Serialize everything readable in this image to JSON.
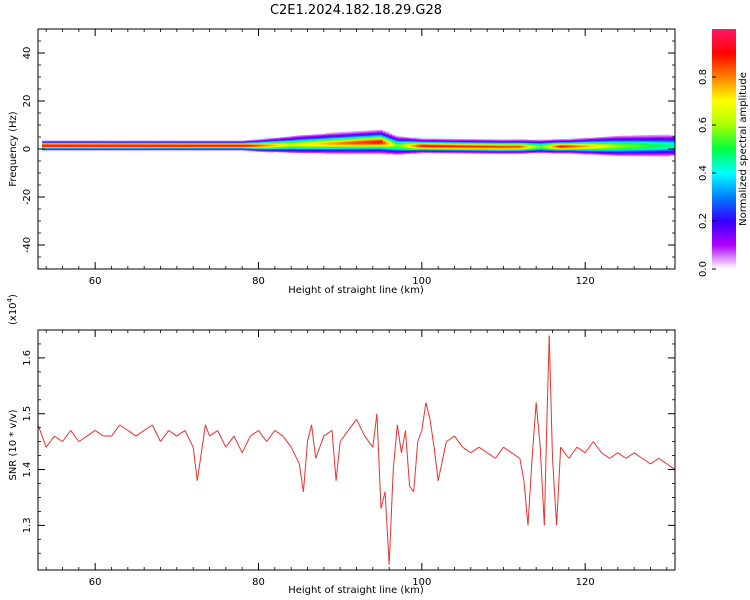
{
  "title": "C2E1.2024.182.18.29.G28",
  "colors": {
    "snr_line": "#e8312f",
    "axis": "#000000",
    "background": "#ffffff"
  },
  "chart_data": [
    {
      "type": "heatmap",
      "title": "",
      "xlabel": "Height of straight line (km)",
      "ylabel": "Frequency (Hz)",
      "xlim": [
        53,
        131
      ],
      "ylim": [
        -50,
        50
      ],
      "x_ticks": [
        60,
        80,
        100,
        120
      ],
      "y_ticks": [
        -40,
        -20,
        0,
        20,
        40
      ],
      "x_tick_labels": [
        "60",
        "80",
        "100",
        "120"
      ],
      "y_tick_labels": [
        "-40",
        "-20",
        "0",
        "20",
        "40"
      ],
      "colorbar": {
        "label": "Normalized spectral amplitude",
        "range": [
          0,
          1
        ],
        "ticks": [
          0.0,
          0.2,
          0.4,
          0.6,
          0.8
        ],
        "tick_labels": [
          "0.0",
          "0.2",
          "0.4",
          "0.6",
          "0.8"
        ],
        "colormap": [
          "#ffffff",
          "#b000ff",
          "#3300ff",
          "#0080ff",
          "#00ffff",
          "#00ff40",
          "#aaff00",
          "#ffff00",
          "#ff8000",
          "#ff0000",
          "#ff1a66"
        ]
      },
      "band": {
        "center_hz": [
          {
            "x": 53.5,
            "f": 1.5
          },
          {
            "x": 80,
            "f": 1.5
          },
          {
            "x": 90,
            "f": 2.5
          },
          {
            "x": 95,
            "f": 3.0
          },
          {
            "x": 97,
            "f": 1.5
          },
          {
            "x": 110,
            "f": 1.0
          },
          {
            "x": 131,
            "f": 1.5
          }
        ],
        "halfwidth_hz": [
          {
            "x": 53.5,
            "w": 2.0
          },
          {
            "x": 78,
            "w": 2.0
          },
          {
            "x": 85,
            "w": 4.0
          },
          {
            "x": 95,
            "w": 5.0
          },
          {
            "x": 100,
            "w": 3.0
          },
          {
            "x": 118,
            "w": 3.0
          },
          {
            "x": 124,
            "w": 4.5
          },
          {
            "x": 131,
            "w": 5.0
          }
        ],
        "peak_amplitude": [
          {
            "x": 53.5,
            "a": 1.0
          },
          {
            "x": 78,
            "a": 0.95
          },
          {
            "x": 84,
            "a": 0.65
          },
          {
            "x": 92,
            "a": 0.85
          },
          {
            "x": 95,
            "a": 0.9
          },
          {
            "x": 97,
            "a": 0.55
          },
          {
            "x": 100,
            "a": 0.9
          },
          {
            "x": 112,
            "a": 0.85
          },
          {
            "x": 114.5,
            "a": 0.55
          },
          {
            "x": 117,
            "a": 0.9
          },
          {
            "x": 124,
            "a": 0.6
          },
          {
            "x": 131,
            "a": 0.45
          }
        ]
      }
    },
    {
      "type": "line",
      "title": "",
      "xlabel": "Height of straight line (km)",
      "ylabel": "SNR (10 * v/v)",
      "y_multiplier": "(x10",
      "y_multiplier_exp": "4",
      "y_multiplier_close": ")",
      "xlim": [
        53,
        131
      ],
      "ylim": [
        1.22,
        1.65
      ],
      "x_ticks": [
        60,
        80,
        100,
        120
      ],
      "y_ticks": [
        1.3,
        1.4,
        1.5,
        1.6
      ],
      "x_tick_labels": [
        "60",
        "80",
        "100",
        "120"
      ],
      "y_tick_labels": [
        "1.3",
        "1.4",
        "1.5",
        "1.6"
      ],
      "series": [
        {
          "x": [
            53.0,
            54.0,
            55.0,
            56.0,
            57.0,
            58.0,
            59.0,
            60.0,
            61.0,
            62.0,
            63.0,
            64.0,
            65.0,
            66.0,
            67.0,
            68.0,
            69.0,
            70.0,
            71.0,
            72.0,
            72.5,
            73.0,
            73.5,
            74.0,
            75.0,
            76.0,
            77.0,
            78.0,
            79.0,
            80.0,
            81.0,
            82.0,
            83.0,
            84.0,
            85.0,
            85.5,
            86.0,
            86.5,
            87.0,
            88.0,
            89.0,
            89.5,
            90.0,
            91.0,
            92.0,
            93.0,
            94.0,
            94.5,
            95.0,
            95.5,
            96.0,
            96.5,
            97.0,
            97.5,
            98.0,
            98.5,
            99.0,
            99.5,
            100.0,
            100.5,
            101.0,
            101.5,
            102.0,
            103.0,
            104.0,
            105.0,
            106.0,
            107.0,
            108.0,
            109.0,
            110.0,
            111.0,
            112.0,
            112.5,
            113.0,
            113.5,
            114.0,
            114.5,
            115.0,
            115.3,
            115.6,
            116.0,
            116.5,
            117.0,
            118.0,
            119.0,
            120.0,
            121.0,
            122.0,
            123.0,
            124.0,
            125.0,
            126.0,
            127.0,
            128.0,
            129.0,
            130.0,
            131.0
          ],
          "y": [
            1.48,
            1.44,
            1.46,
            1.45,
            1.47,
            1.45,
            1.46,
            1.47,
            1.46,
            1.46,
            1.48,
            1.47,
            1.46,
            1.47,
            1.48,
            1.45,
            1.47,
            1.46,
            1.47,
            1.44,
            1.38,
            1.43,
            1.48,
            1.46,
            1.47,
            1.44,
            1.46,
            1.43,
            1.46,
            1.47,
            1.45,
            1.47,
            1.46,
            1.44,
            1.41,
            1.36,
            1.45,
            1.48,
            1.42,
            1.46,
            1.47,
            1.38,
            1.45,
            1.47,
            1.49,
            1.46,
            1.44,
            1.5,
            1.33,
            1.36,
            1.23,
            1.4,
            1.48,
            1.43,
            1.47,
            1.37,
            1.36,
            1.45,
            1.47,
            1.52,
            1.49,
            1.44,
            1.38,
            1.45,
            1.46,
            1.44,
            1.43,
            1.44,
            1.43,
            1.42,
            1.44,
            1.43,
            1.42,
            1.38,
            1.3,
            1.42,
            1.52,
            1.44,
            1.3,
            1.48,
            1.64,
            1.42,
            1.3,
            1.44,
            1.42,
            1.44,
            1.43,
            1.45,
            1.43,
            1.42,
            1.43,
            1.42,
            1.43,
            1.42,
            1.41,
            1.42,
            1.41,
            1.4
          ]
        }
      ]
    }
  ]
}
